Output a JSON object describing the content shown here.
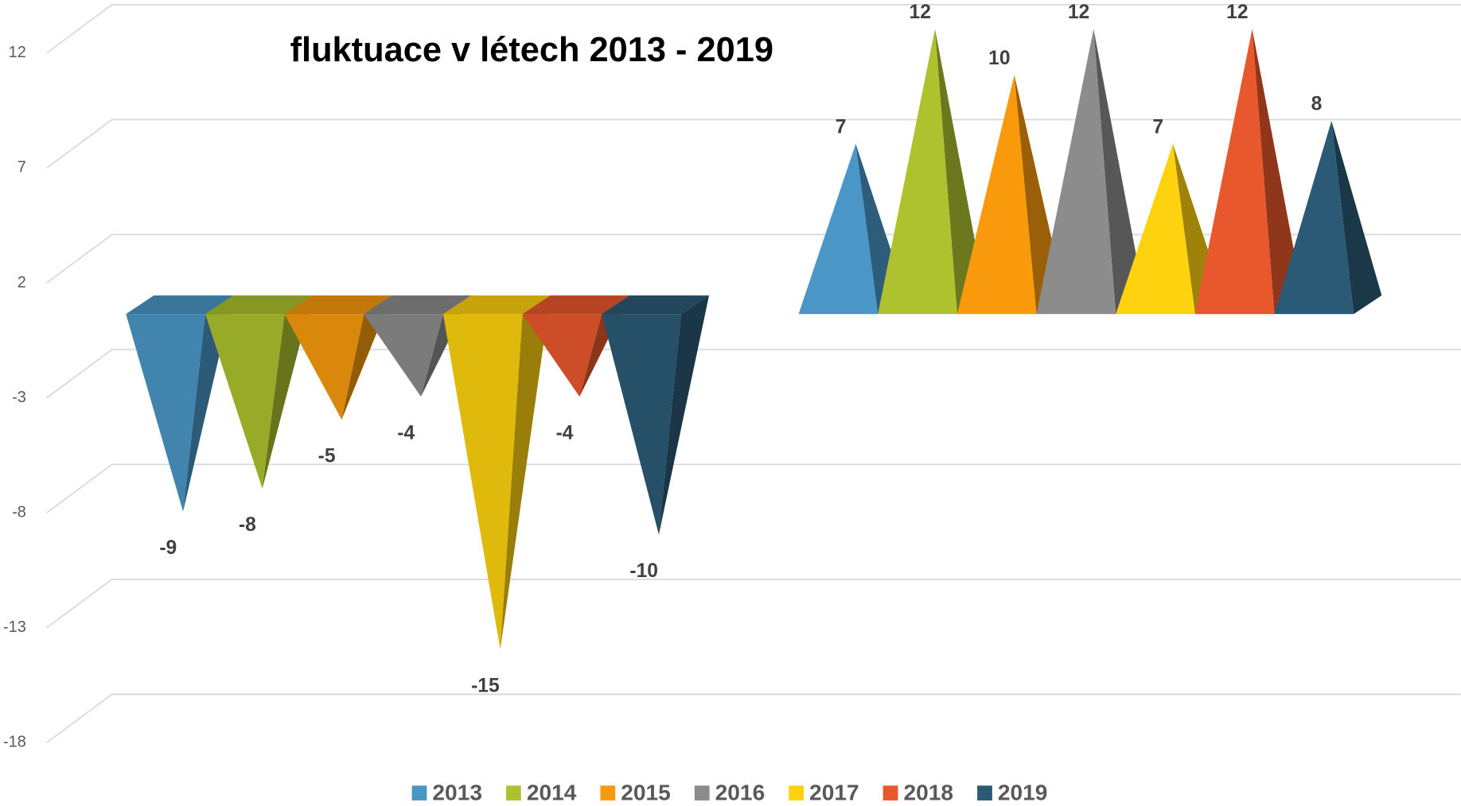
{
  "chart_data": {
    "type": "pyramid3d",
    "title": "fluktuace v létech 2013 - 2019",
    "categories": [
      null,
      null
    ],
    "series": [
      {
        "name": "2013",
        "color": "#4a96c6",
        "values": [
          -9,
          7
        ]
      },
      {
        "name": "2014",
        "color": "#adc22e",
        "values": [
          -8,
          12
        ]
      },
      {
        "name": "2015",
        "color": "#f89a0c",
        "values": [
          -5,
          10
        ]
      },
      {
        "name": "2016",
        "color": "#8c8c8c",
        "values": [
          -4,
          12
        ]
      },
      {
        "name": "2017",
        "color": "#ffd20f",
        "values": [
          -15,
          7
        ]
      },
      {
        "name": "2018",
        "color": "#e8582c",
        "values": [
          -4,
          12
        ]
      },
      {
        "name": "2019",
        "color": "#2b5a76",
        "values": [
          -10,
          8
        ]
      }
    ],
    "ylim": [
      -18,
      12
    ],
    "yticks": [
      -18,
      -13,
      -8,
      -3,
      2,
      7,
      12
    ],
    "grid": true,
    "legend": "bottom"
  }
}
